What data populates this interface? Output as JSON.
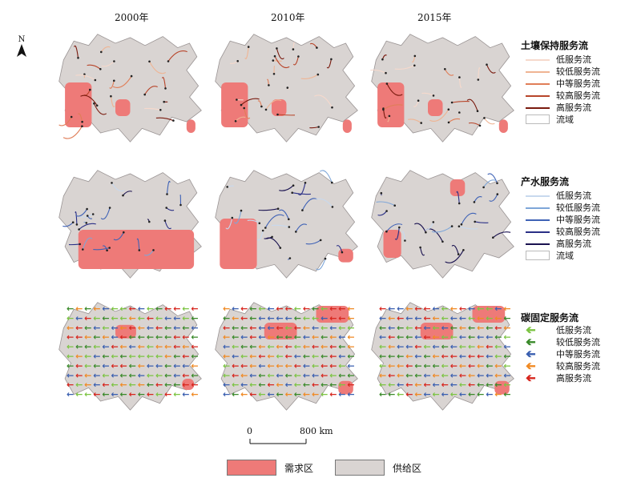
{
  "years": [
    "2000年",
    "2010年",
    "2015年"
  ],
  "north_label": "N",
  "scale": {
    "zero": "0",
    "end": "800 km"
  },
  "legend_soil": {
    "title": "土壤保持服务流",
    "items": [
      {
        "label": "低服务流",
        "color": "#f6d9cc"
      },
      {
        "label": "较低服务流",
        "color": "#efb493"
      },
      {
        "label": "中等服务流",
        "color": "#e07e58"
      },
      {
        "label": "较高服务流",
        "color": "#b8452a"
      },
      {
        "label": "高服务流",
        "color": "#7a1b0f"
      }
    ],
    "basin_label": "流域"
  },
  "legend_water": {
    "title": "产水服务流",
    "items": [
      {
        "label": "低服务流",
        "color": "#c8d9ee"
      },
      {
        "label": "较低服务流",
        "color": "#7ea6d8"
      },
      {
        "label": "中等服务流",
        "color": "#3f62b6"
      },
      {
        "label": "较高服务流",
        "color": "#2a2f86"
      },
      {
        "label": "高服务流",
        "color": "#1a1250"
      }
    ],
    "basin_label": "流域"
  },
  "legend_carbon": {
    "title": "碳固定服务流",
    "items": [
      {
        "label": "低服务流",
        "color": "#7cc443"
      },
      {
        "label": "较低服务流",
        "color": "#3a8a2a"
      },
      {
        "label": "中等服务流",
        "color": "#3a5fb0"
      },
      {
        "label": "较高服务流",
        "color": "#f08a24"
      },
      {
        "label": "高服务流",
        "color": "#d7261e"
      }
    ]
  },
  "bottom_legend": [
    {
      "label": "需求区",
      "color": "#ee7a78"
    },
    {
      "label": "供给区",
      "color": "#d9d4d2"
    }
  ]
}
